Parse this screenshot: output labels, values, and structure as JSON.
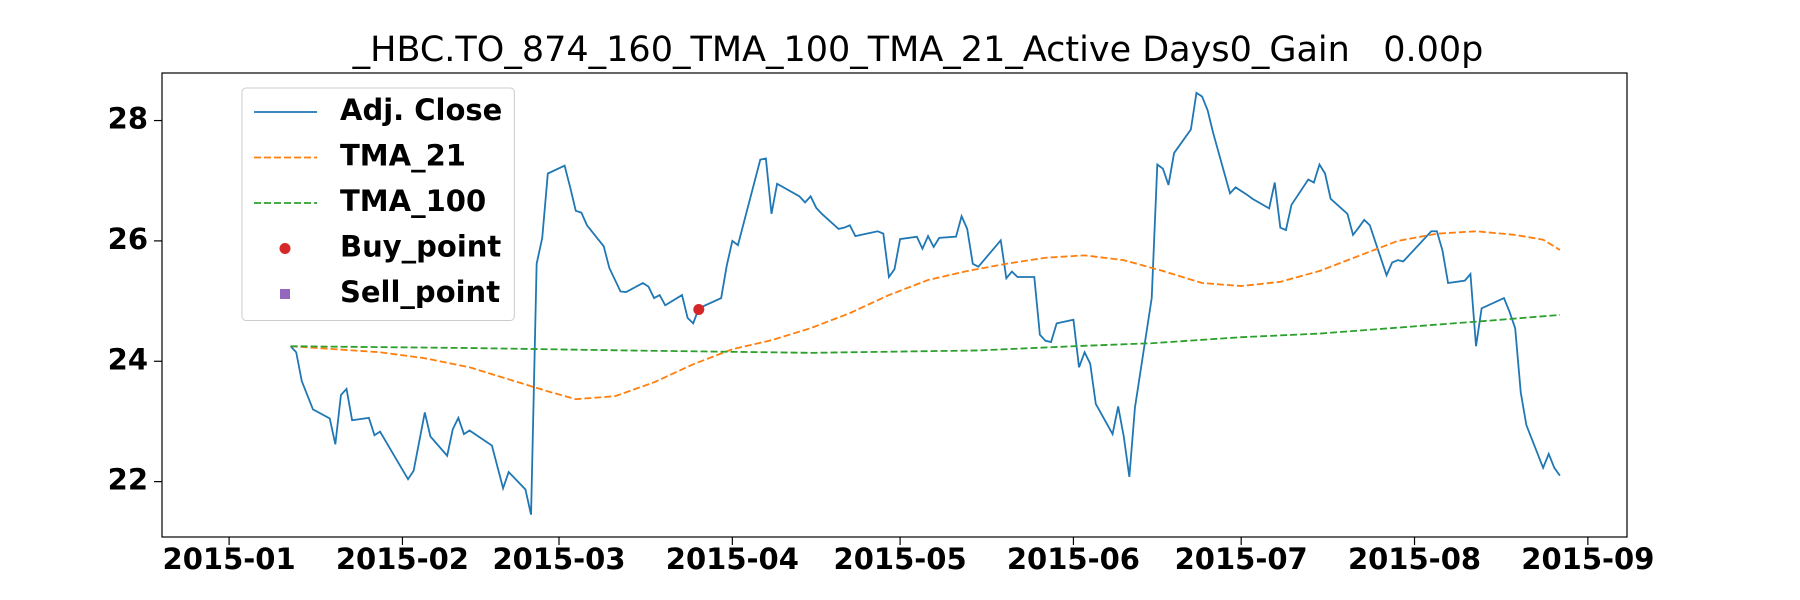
{
  "chart_data": {
    "type": "line",
    "title": "_HBC.TO_874_160_TMA_100_TMA_21_Active Days0_Gain   0.00p",
    "xlim": [
      "2014-12-20",
      "2015-09-08"
    ],
    "xticks": [
      {
        "value": "2015-01-01",
        "label": "2015-01"
      },
      {
        "value": "2015-02-01",
        "label": "2015-02"
      },
      {
        "value": "2015-03-01",
        "label": "2015-03"
      },
      {
        "value": "2015-04-01",
        "label": "2015-04"
      },
      {
        "value": "2015-05-01",
        "label": "2015-05"
      },
      {
        "value": "2015-06-01",
        "label": "2015-06"
      },
      {
        "value": "2015-07-01",
        "label": "2015-07"
      },
      {
        "value": "2015-08-01",
        "label": "2015-08"
      },
      {
        "value": "2015-09-01",
        "label": "2015-09"
      }
    ],
    "ylim": [
      21.08,
      28.79
    ],
    "yticks": [
      22,
      24,
      26,
      28
    ],
    "grid": false,
    "legend": "upper left",
    "series": [
      {
        "name": "Adj. Close",
        "color": "#1f77b4",
        "linestyle": "solid",
        "x": [
          "2015-01-12",
          "2015-01-13",
          "2015-01-14",
          "2015-01-16",
          "2015-01-19",
          "2015-01-20",
          "2015-01-21",
          "2015-01-22",
          "2015-01-23",
          "2015-01-26",
          "2015-01-27",
          "2015-01-28",
          "2015-02-02",
          "2015-02-03",
          "2015-02-05",
          "2015-02-06",
          "2015-02-09",
          "2015-02-10",
          "2015-02-11",
          "2015-02-12",
          "2015-02-13",
          "2015-02-17",
          "2015-02-19",
          "2015-02-20",
          "2015-02-23",
          "2015-02-24",
          "2015-02-25",
          "2015-02-26",
          "2015-02-27",
          "2015-03-02",
          "2015-03-03",
          "2015-03-04",
          "2015-03-05",
          "2015-03-06",
          "2015-03-09",
          "2015-03-10",
          "2015-03-12",
          "2015-03-13",
          "2015-03-16",
          "2015-03-17",
          "2015-03-18",
          "2015-03-19",
          "2015-03-20",
          "2015-03-23",
          "2015-03-24",
          "2015-03-25",
          "2015-03-26",
          "2015-03-30",
          "2015-03-31",
          "2015-04-01",
          "2015-04-02",
          "2015-04-06",
          "2015-04-07",
          "2015-04-08",
          "2015-04-09",
          "2015-04-13",
          "2015-04-14",
          "2015-04-15",
          "2015-04-16",
          "2015-04-17",
          "2015-04-20",
          "2015-04-21",
          "2015-04-22",
          "2015-04-23",
          "2015-04-24",
          "2015-04-27",
          "2015-04-28",
          "2015-04-29",
          "2015-04-30",
          "2015-05-01",
          "2015-05-04",
          "2015-05-05",
          "2015-05-06",
          "2015-05-07",
          "2015-05-08",
          "2015-05-11",
          "2015-05-12",
          "2015-05-13",
          "2015-05-14",
          "2015-05-15",
          "2015-05-19",
          "2015-05-20",
          "2015-05-21",
          "2015-05-22",
          "2015-05-25",
          "2015-05-26",
          "2015-05-27",
          "2015-05-28",
          "2015-05-29",
          "2015-06-01",
          "2015-06-02",
          "2015-06-03",
          "2015-06-04",
          "2015-06-05",
          "2015-06-08",
          "2015-06-09",
          "2015-06-10",
          "2015-06-11",
          "2015-06-12",
          "2015-06-15",
          "2015-06-16",
          "2015-06-17",
          "2015-06-18",
          "2015-06-19",
          "2015-06-22",
          "2015-06-23",
          "2015-06-24",
          "2015-06-25",
          "2015-06-26",
          "2015-06-29",
          "2015-06-30",
          "2015-07-02",
          "2015-07-03",
          "2015-07-06",
          "2015-07-07",
          "2015-07-08",
          "2015-07-09",
          "2015-07-10",
          "2015-07-13",
          "2015-07-14",
          "2015-07-15",
          "2015-07-16",
          "2015-07-17",
          "2015-07-20",
          "2015-07-21",
          "2015-07-22",
          "2015-07-23",
          "2015-07-24",
          "2015-07-27",
          "2015-07-28",
          "2015-07-29",
          "2015-07-30",
          "2015-08-04",
          "2015-08-05",
          "2015-08-06",
          "2015-08-07",
          "2015-08-10",
          "2015-08-11",
          "2015-08-12",
          "2015-08-13",
          "2015-08-17",
          "2015-08-18",
          "2015-08-19",
          "2015-08-20",
          "2015-08-21",
          "2015-08-24",
          "2015-08-25",
          "2015-08-26",
          "2015-08-27"
        ],
        "values": [
          24.25,
          24.15,
          23.67,
          23.2,
          23.05,
          22.62,
          23.44,
          23.54,
          23.02,
          23.06,
          22.77,
          22.83,
          22.04,
          22.18,
          23.15,
          22.75,
          22.43,
          22.87,
          23.06,
          22.79,
          22.85,
          22.6,
          21.89,
          22.16,
          21.87,
          21.45,
          25.62,
          26.05,
          27.12,
          27.25,
          26.89,
          26.5,
          26.47,
          26.26,
          25.91,
          25.55,
          25.16,
          25.15,
          25.3,
          25.24,
          25.05,
          25.1,
          24.93,
          25.1,
          24.72,
          24.63,
          24.88,
          25.05,
          25.59,
          26.0,
          25.93,
          27.35,
          27.37,
          26.45,
          26.95,
          26.74,
          26.64,
          26.74,
          26.55,
          26.45,
          26.2,
          26.22,
          26.26,
          26.08,
          26.1,
          26.16,
          26.12,
          25.4,
          25.53,
          26.03,
          26.07,
          25.87,
          26.08,
          25.9,
          26.05,
          26.07,
          26.41,
          26.2,
          25.62,
          25.57,
          26.01,
          25.38,
          25.49,
          25.4,
          25.4,
          24.44,
          24.34,
          24.32,
          24.63,
          24.69,
          23.9,
          24.15,
          23.96,
          23.29,
          22.79,
          23.25,
          22.75,
          22.08,
          23.23,
          25.05,
          27.27,
          27.2,
          26.93,
          27.46,
          27.85,
          28.46,
          28.4,
          28.17,
          27.79,
          26.79,
          26.89,
          26.77,
          26.7,
          26.54,
          26.97,
          26.22,
          26.18,
          26.6,
          27.02,
          26.97,
          27.27,
          27.12,
          26.7,
          26.45,
          26.1,
          26.22,
          26.35,
          26.26,
          25.43,
          25.64,
          25.68,
          25.66,
          26.16,
          26.16,
          25.84,
          25.3,
          25.34,
          25.45,
          24.25,
          24.88,
          25.05,
          24.82,
          24.55,
          23.48,
          22.94,
          22.23,
          22.46,
          22.23,
          22.1
        ]
      },
      {
        "name": "TMA_21",
        "color": "#ff7f0e",
        "linestyle": "dashed",
        "x": [
          "2015-01-12",
          "2015-01-20",
          "2015-01-28",
          "2015-02-05",
          "2015-02-13",
          "2015-02-20",
          "2015-02-27",
          "2015-03-04",
          "2015-03-11",
          "2015-03-18",
          "2015-03-25",
          "2015-04-01",
          "2015-04-08",
          "2015-04-15",
          "2015-04-22",
          "2015-04-29",
          "2015-05-06",
          "2015-05-13",
          "2015-05-20",
          "2015-05-27",
          "2015-06-03",
          "2015-06-10",
          "2015-06-17",
          "2015-06-24",
          "2015-07-01",
          "2015-07-08",
          "2015-07-15",
          "2015-07-22",
          "2015-07-29",
          "2015-08-05",
          "2015-08-12",
          "2015-08-19",
          "2015-08-24",
          "2015-08-27"
        ],
        "values": [
          24.25,
          24.2,
          24.15,
          24.05,
          23.9,
          23.7,
          23.5,
          23.37,
          23.42,
          23.65,
          23.95,
          24.2,
          24.35,
          24.55,
          24.8,
          25.1,
          25.35,
          25.5,
          25.62,
          25.72,
          25.76,
          25.68,
          25.5,
          25.3,
          25.25,
          25.32,
          25.5,
          25.75,
          26.0,
          26.12,
          26.16,
          26.1,
          26.02,
          25.85
        ]
      },
      {
        "name": "TMA_100",
        "color": "#2ca02c",
        "linestyle": "dashed",
        "x": [
          "2015-01-12",
          "2015-02-13",
          "2015-03-13",
          "2015-04-15",
          "2015-05-15",
          "2015-06-01",
          "2015-06-15",
          "2015-07-01",
          "2015-07-15",
          "2015-08-01",
          "2015-08-15",
          "2015-08-27"
        ],
        "values": [
          24.25,
          24.22,
          24.18,
          24.14,
          24.18,
          24.25,
          24.3,
          24.4,
          24.46,
          24.58,
          24.68,
          24.77
        ]
      },
      {
        "name": "Buy_point",
        "color": "#d62728",
        "marker": "o",
        "x": [
          "2015-03-26"
        ],
        "values": [
          24.86
        ]
      },
      {
        "name": "Sell_point",
        "color": "#9467bd",
        "marker": "s",
        "x": [],
        "values": []
      }
    ]
  }
}
